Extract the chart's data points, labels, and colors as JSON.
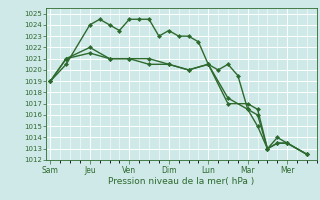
{
  "background_color": "#cfe8e8",
  "grid_color": "#ffffff",
  "line_color": "#2d6a2d",
  "marker": "D",
  "marker_size": 2.0,
  "linewidth": 1.0,
  "xlabel": "Pression niveau de la mer( hPa )",
  "ylim": [
    1012,
    1025.5
  ],
  "yticks": [
    1012,
    1013,
    1014,
    1015,
    1016,
    1017,
    1018,
    1019,
    1020,
    1021,
    1022,
    1023,
    1024,
    1025
  ],
  "xtick_labels": [
    "Sam",
    "Jeu",
    "Ven",
    "Dim",
    "Lun",
    "Mar",
    "Mer"
  ],
  "xtick_positions": [
    0,
    2,
    4,
    6,
    8,
    10,
    12
  ],
  "xlim": [
    -0.2,
    13.5
  ],
  "series1": {
    "x": [
      0,
      0.8,
      2,
      2.5,
      3,
      3.5,
      4,
      4.5,
      5,
      5.5,
      6,
      6.5,
      7,
      7.5,
      8,
      8.5,
      9,
      9.5,
      10,
      10.5,
      11,
      11.5,
      12,
      13
    ],
    "y": [
      1019,
      1020.5,
      1024,
      1024.5,
      1024,
      1023.5,
      1024.5,
      1024.5,
      1024.5,
      1023,
      1023.5,
      1023,
      1023,
      1022.5,
      1020.5,
      1020,
      1020.5,
      1019.5,
      1016.5,
      1015,
      1013,
      1014,
      1013.5,
      1012.5
    ]
  },
  "series2": {
    "x": [
      0,
      0.8,
      2,
      3,
      4,
      5,
      6,
      7,
      8,
      9,
      10,
      10.5,
      11,
      11.5,
      12,
      13
    ],
    "y": [
      1019,
      1021,
      1022,
      1021,
      1021,
      1021,
      1020.5,
      1020,
      1020.5,
      1017.5,
      1016.5,
      1016,
      1013,
      1013.5,
      1013.5,
      1012.5
    ]
  },
  "series3": {
    "x": [
      0,
      0.8,
      2,
      3,
      4,
      5,
      6,
      7,
      8,
      9,
      10,
      10.5,
      11,
      11.5,
      12,
      13
    ],
    "y": [
      1019,
      1021,
      1021.5,
      1021,
      1021,
      1020.5,
      1020.5,
      1020,
      1020.5,
      1017,
      1017,
      1016.5,
      1013,
      1013.5,
      1013.5,
      1012.5
    ]
  }
}
